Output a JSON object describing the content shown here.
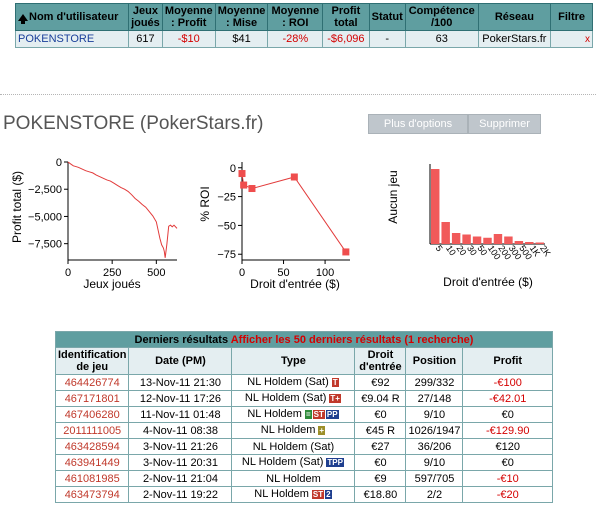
{
  "summary": {
    "headers": [
      "Nom d'utilisateur",
      "Jeux joués",
      "Moyenne : Profit",
      "Moyenne : Mise",
      "Moyenne : ROI",
      "Profit total",
      "Statut",
      "Compétence /100",
      "Réseau",
      "Filtre"
    ],
    "row": {
      "username": "POKENSTORE",
      "games": "617",
      "avg_profit": "-$10",
      "avg_stake": "$41",
      "avg_roi": "-28%",
      "total_profit": "-$6,096",
      "status": "-",
      "skill": "63",
      "network": "PokerStars.fr",
      "filter": "x"
    }
  },
  "player": {
    "title": "POKENSTORE (PokerStars.fr)",
    "more_options": "Plus d'options",
    "delete": "Supprimer"
  },
  "chart_data": [
    {
      "type": "line",
      "xlabel": "Jeux joués",
      "ylabel": "Profit total ($)",
      "xlim": [
        0,
        617
      ],
      "ylim": [
        -9000,
        0
      ],
      "xticks": [
        0,
        250,
        500
      ],
      "yticks": [
        0,
        -2500,
        -5000,
        -7500
      ],
      "x": [
        0,
        15,
        30,
        45,
        60,
        80,
        100,
        120,
        140,
        160,
        180,
        200,
        220,
        240,
        260,
        280,
        300,
        320,
        340,
        360,
        380,
        400,
        420,
        440,
        460,
        480,
        500,
        510,
        520,
        530,
        540,
        545,
        550,
        560,
        570,
        580,
        590,
        600,
        617
      ],
      "y": [
        0,
        -180,
        -350,
        -420,
        -500,
        -650,
        -800,
        -900,
        -1000,
        -1200,
        -1350,
        -1500,
        -1650,
        -1750,
        -1950,
        -2150,
        -2350,
        -2500,
        -2700,
        -3000,
        -3350,
        -3600,
        -3900,
        -4150,
        -4550,
        -4950,
        -5500,
        -6250,
        -7000,
        -7600,
        -7900,
        -8200,
        -8800,
        -7500,
        -5900,
        -5800,
        -5950,
        -5800,
        -6096
      ]
    },
    {
      "type": "line",
      "xlabel": "Droit d'entrée ($)",
      "ylabel": "% ROI",
      "xlim": [
        0,
        130
      ],
      "ylim": [
        -80,
        5
      ],
      "xticks": [
        0,
        50,
        100
      ],
      "yticks": [
        0,
        -25,
        -50,
        -75
      ],
      "x": [
        0,
        2,
        12,
        63,
        125
      ],
      "y": [
        -5,
        -15,
        -18,
        -8,
        -73
      ]
    },
    {
      "type": "bar",
      "xlabel": "Droit d'entrée ($)",
      "ylabel": "Aucun jeu",
      "ylim": [
        0,
        320
      ],
      "categories": [
        "5",
        "10",
        "20",
        "30",
        "50",
        "100",
        "200",
        "300",
        "500",
        "1K",
        "2K"
      ],
      "values": [
        300,
        88,
        44,
        38,
        30,
        25,
        40,
        30,
        12,
        8,
        6
      ]
    }
  ],
  "results": {
    "title": "Derniers résultats",
    "link": "Afficher les 50 derniers résultats (1 recherche)",
    "headers": [
      "Identification de jeu",
      "Date (PM)",
      "Type",
      "Droit d'entrée",
      "Position",
      "Profit"
    ],
    "rows": [
      {
        "id": "464426774",
        "date": "13-Nov-11",
        "time": "21:30",
        "type": "NL Holdem (Sat)",
        "badges": [
          {
            "t": "T",
            "c": "red"
          }
        ],
        "fee": "€92",
        "position": "299/332",
        "profit": "-€100",
        "neg": true
      },
      {
        "id": "467171801",
        "date": "12-Nov-11",
        "time": "17:26",
        "type": "NL Holdem (Sat)",
        "badges": [
          {
            "t": "T+",
            "c": "red"
          }
        ],
        "fee": "€9.04 R",
        "position": "27/148",
        "profit": "-€42.01",
        "neg": true
      },
      {
        "id": "467406280",
        "date": "11-Nov-11",
        "time": "01:48",
        "type": "NL Holdem",
        "badges": [
          {
            "t": "=",
            "c": "green"
          },
          {
            "t": "ST",
            "c": "red"
          },
          {
            "t": "PP",
            "c": "blue"
          }
        ],
        "fee": "€0",
        "position": "9/10",
        "profit": "€0",
        "neg": false
      },
      {
        "id": "2011111005",
        "date": "4-Nov-11",
        "time": "08:38",
        "type": "NL Holdem",
        "badges": [
          {
            "t": "+",
            "c": "olive"
          }
        ],
        "fee": "€45 R",
        "position": "1026/1947",
        "profit": "-€129.90",
        "neg": true
      },
      {
        "id": "463428594",
        "date": "3-Nov-11",
        "time": "21:26",
        "type": "NL Holdem (Sat)",
        "badges": [],
        "fee": "€27",
        "position": "36/206",
        "profit": "€120",
        "neg": false
      },
      {
        "id": "463941449",
        "date": "3-Nov-11",
        "time": "20:31",
        "type": "NL Holdem (Sat)",
        "badges": [
          {
            "t": "TPP",
            "c": "blue"
          }
        ],
        "fee": "€0",
        "position": "9/10",
        "profit": "€0",
        "neg": false
      },
      {
        "id": "461081985",
        "date": "2-Nov-11",
        "time": "21:04",
        "type": "NL Holdem",
        "badges": [],
        "fee": "€9",
        "position": "597/705",
        "profit": "-€10",
        "neg": true
      },
      {
        "id": "463473794",
        "date": "2-Nov-11",
        "time": "19:22",
        "type": "NL Holdem",
        "badges": [
          {
            "t": "ST",
            "c": "red"
          },
          {
            "t": "2",
            "c": "blue"
          }
        ],
        "fee": "€18.80",
        "position": "2/2",
        "profit": "-€20",
        "neg": true
      }
    ]
  }
}
